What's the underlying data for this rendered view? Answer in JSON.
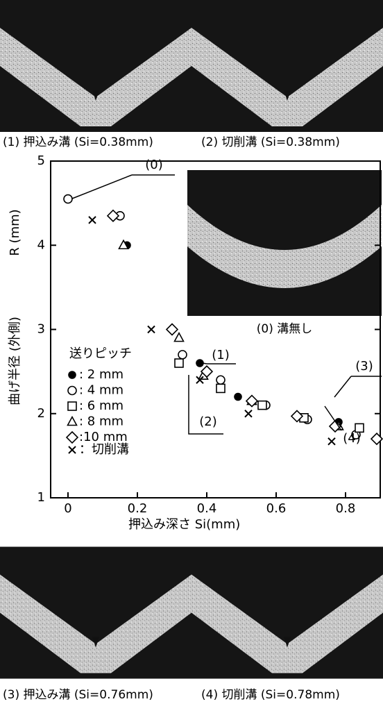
{
  "captions": {
    "top_left": "(1) 押込み溝 (Si=0.38mm)",
    "top_right": "(2) 切削溝 (Si=0.38mm)",
    "bottom_left": "(3) 押込み溝 (Si=0.76mm)",
    "bottom_right": "(4) 切削溝 (Si=0.78mm)",
    "inset": "(0) 溝無し"
  },
  "chart_data": {
    "type": "scatter",
    "xlabel": "押込み深さ Si(mm)",
    "ylabel": "曲げ半径 (外側)",
    "yunit": "R (mm)",
    "xlim": [
      -0.05,
      0.9
    ],
    "xticks": [
      0,
      0.2,
      0.4,
      0.6,
      0.8
    ],
    "ylim": [
      1,
      5
    ],
    "yticks": [
      1,
      2,
      3,
      4,
      5
    ],
    "legend_title": "送りピッチ",
    "series": [
      {
        "name": ": 2 mm",
        "marker": "filled-circle",
        "color": "#000",
        "x": [
          0.17,
          0.38,
          0.49,
          0.78
        ],
        "values": [
          4.0,
          2.6,
          2.2,
          1.9
        ]
      },
      {
        "name": ": 4 mm",
        "marker": "circle",
        "color": "#000",
        "x": [
          0.0,
          0.15,
          0.33,
          0.44,
          0.57,
          0.69,
          0.83
        ],
        "values": [
          4.55,
          4.35,
          2.7,
          2.4,
          2.1,
          1.93,
          1.75
        ]
      },
      {
        "name": ": 6 mm",
        "marker": "square",
        "color": "#000",
        "x": [
          0.32,
          0.44,
          0.56,
          0.68,
          0.84
        ],
        "values": [
          2.6,
          2.3,
          2.1,
          1.95,
          1.83
        ]
      },
      {
        "name": ": 8 mm",
        "marker": "triangle",
        "color": "#000",
        "x": [
          0.16,
          0.32,
          0.39,
          0.53,
          0.78
        ],
        "values": [
          4.0,
          2.9,
          2.45,
          2.15,
          1.85
        ]
      },
      {
        "name": ":10 mm",
        "marker": "diamond",
        "color": "#000",
        "x": [
          0.13,
          0.3,
          0.4,
          0.53,
          0.66,
          0.77,
          0.89
        ],
        "values": [
          4.35,
          3.0,
          2.5,
          2.15,
          1.97,
          1.85,
          1.7
        ]
      },
      {
        "name": "：切削溝",
        "marker": "cross",
        "color": "#000",
        "x": [
          0.07,
          0.24,
          0.38,
          0.52,
          0.76
        ],
        "values": [
          4.3,
          3.0,
          2.4,
          2.0,
          1.67
        ]
      }
    ],
    "annotations": [
      "(0)",
      "(1)",
      "(2)",
      "(3)",
      "(4)"
    ]
  }
}
